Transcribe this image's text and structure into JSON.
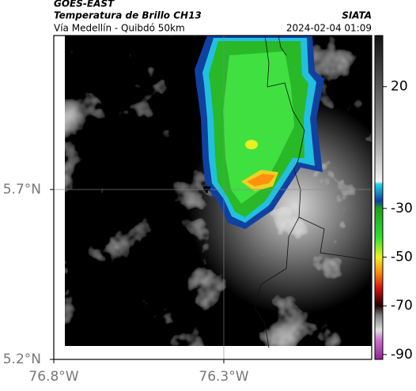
{
  "map": {
    "title": "GOES-EAST",
    "subtitle": "Temperatura de Brillo CH13",
    "route": "Vía Medellín - Quibdó 50km",
    "source": "SIATA",
    "datetime": "2024-02-04 01:09",
    "xlim": [
      -76.8,
      -75.865
    ],
    "ylim": [
      5.2,
      6.153
    ],
    "xticks": [
      {
        "value": -76.8,
        "label": "76.8°W"
      },
      {
        "value": -76.3,
        "label": "76.3°W"
      }
    ],
    "yticks": [
      {
        "value": 5.2,
        "label": "5.2°N"
      },
      {
        "value": 5.7,
        "label": "5.7°N"
      }
    ],
    "colorbar": {
      "lim": [
        -92,
        41
      ],
      "ticks": [
        20,
        -30,
        -50,
        -70,
        -90
      ],
      "stops": [
        {
          "value": 41,
          "color": "#111111"
        },
        {
          "value": 0,
          "color": "#9a9a9a"
        },
        {
          "value": -19,
          "color": "#f4f4f4"
        },
        {
          "value": -20,
          "color": "#22d6e6"
        },
        {
          "value": -27,
          "color": "#1040a0"
        },
        {
          "value": -30,
          "color": "#20a020"
        },
        {
          "value": -42,
          "color": "#30e030"
        },
        {
          "value": -50,
          "color": "#f0f020"
        },
        {
          "value": -56,
          "color": "#ff9010"
        },
        {
          "value": -63,
          "color": "#d01010"
        },
        {
          "value": -70,
          "color": "#200000"
        },
        {
          "value": -74,
          "color": "#808080"
        },
        {
          "value": -80,
          "color": "#e0e0e0"
        },
        {
          "value": -84,
          "color": "#d070d0"
        },
        {
          "value": -92,
          "color": "#902090"
        }
      ]
    }
  }
}
